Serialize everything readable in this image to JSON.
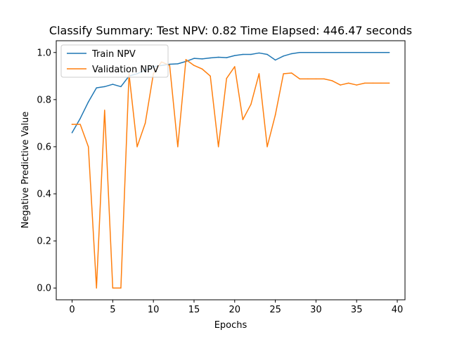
{
  "chart_data": {
    "type": "line",
    "title": "Classify Summary: Test NPV: 0.82 Time Elapsed: 446.47 seconds",
    "xlabel": "Epochs",
    "ylabel": "Negative Predictive Value",
    "xlim": [
      -1.95,
      40.95
    ],
    "ylim": [
      -0.05,
      1.05
    ],
    "xticks": [
      0,
      5,
      10,
      15,
      20,
      25,
      30,
      35,
      40
    ],
    "yticks": [
      0.0,
      0.2,
      0.4,
      0.6,
      0.8,
      1.0
    ],
    "ytick_labels": [
      "0.0",
      "0.2",
      "0.4",
      "0.6",
      "0.8",
      "1.0"
    ],
    "grid": false,
    "legend_position": "top-left",
    "x": [
      0,
      1,
      2,
      3,
      4,
      5,
      6,
      7,
      8,
      9,
      10,
      11,
      12,
      13,
      14,
      15,
      16,
      17,
      18,
      19,
      20,
      21,
      22,
      23,
      24,
      25,
      26,
      27,
      28,
      29,
      30,
      31,
      32,
      33,
      34,
      35,
      36,
      37,
      38,
      39
    ],
    "series": [
      {
        "name": "Train NPV",
        "color": "#1f77b4",
        "values": [
          0.66,
          0.72,
          0.79,
          0.85,
          0.855,
          0.865,
          0.855,
          0.9,
          0.91,
          0.925,
          0.94,
          0.945,
          0.95,
          0.952,
          0.962,
          0.975,
          0.973,
          0.977,
          0.98,
          0.978,
          0.987,
          0.992,
          0.992,
          0.998,
          0.992,
          0.968,
          0.985,
          0.995,
          1.0,
          1.0,
          1.0,
          1.0,
          1.0,
          1.0,
          1.0,
          1.0,
          1.0,
          1.0,
          1.0,
          1.0
        ]
      },
      {
        "name": "Validation NPV",
        "color": "#ff7f0e",
        "values": [
          0.695,
          0.695,
          0.6,
          0.0,
          0.755,
          0.0,
          0.0,
          0.91,
          0.6,
          0.7,
          0.91,
          0.96,
          0.945,
          0.6,
          0.97,
          0.945,
          0.93,
          0.9,
          0.6,
          0.89,
          0.94,
          0.715,
          0.78,
          0.91,
          0.6,
          0.735,
          0.91,
          0.913,
          0.888,
          0.888,
          0.888,
          0.888,
          0.88,
          0.862,
          0.87,
          0.862,
          0.87,
          0.87,
          0.87,
          0.87
        ]
      }
    ]
  }
}
